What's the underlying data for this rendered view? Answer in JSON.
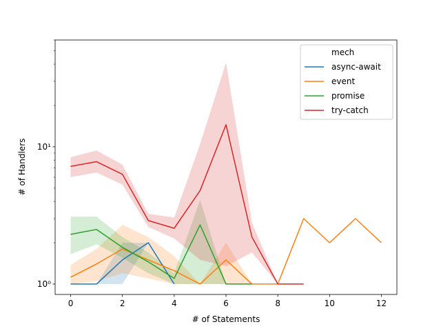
{
  "chart_data": {
    "type": "line",
    "xlabel": "# of Statements",
    "ylabel": "# of Handlers",
    "xlim": [
      -0.6,
      12.6
    ],
    "ylim": [
      0.84,
      60
    ],
    "yscale": "log",
    "x_ticks": [
      0,
      2,
      4,
      6,
      8,
      10,
      12
    ],
    "x_tick_labels": [
      "0",
      "2",
      "4",
      "6",
      "8",
      "10",
      "12"
    ],
    "y_ticks": [
      1,
      10
    ],
    "y_tick_labels": [
      "10⁰",
      "10¹"
    ],
    "grid": false,
    "legend": {
      "title": "mech",
      "placement": "top-right"
    },
    "series": [
      {
        "name": "async-await",
        "color": "#1f77b4",
        "x": [
          0,
          1,
          2,
          3,
          4
        ],
        "y": [
          1.0,
          1.0,
          1.5,
          2.0,
          1.0
        ],
        "ci_low": [
          1.0,
          1.0,
          1.0,
          2.0,
          1.0
        ],
        "ci_high": [
          1.0,
          1.0,
          2.0,
          2.0,
          1.0
        ]
      },
      {
        "name": "event",
        "color": "#ff7f0e",
        "x": [
          0,
          1,
          2,
          3,
          4,
          5,
          6,
          7,
          8,
          9,
          10,
          11,
          12
        ],
        "y": [
          1.12,
          1.4,
          1.8,
          1.5,
          1.25,
          1.0,
          1.5,
          1.0,
          1.0,
          3.0,
          2.0,
          3.0,
          2.0
        ],
        "ci_low": [
          1.0,
          1.05,
          1.2,
          1.1,
          1.0,
          1.0,
          1.0,
          1.0,
          1.0,
          3.0,
          2.0,
          3.0,
          2.0
        ],
        "ci_high": [
          1.38,
          1.8,
          2.7,
          2.2,
          1.6,
          1.0,
          2.0,
          1.0,
          1.0,
          3.0,
          2.0,
          3.0,
          2.0
        ]
      },
      {
        "name": "promise",
        "color": "#2ca02c",
        "x": [
          0,
          1,
          2,
          3,
          4,
          5,
          6,
          7
        ],
        "y": [
          2.3,
          2.5,
          1.85,
          1.45,
          1.1,
          2.7,
          1.0,
          1.0
        ],
        "ci_low": [
          1.65,
          1.95,
          1.55,
          1.2,
          1.0,
          1.0,
          1.0,
          1.0
        ],
        "ci_high": [
          3.1,
          3.1,
          2.2,
          1.7,
          1.2,
          4.1,
          1.0,
          1.0
        ]
      },
      {
        "name": "try-catch",
        "color": "#d62728",
        "x": [
          0,
          1,
          2,
          3,
          4,
          5,
          6,
          7,
          8,
          9
        ],
        "y": [
          7.2,
          7.8,
          6.3,
          2.9,
          2.55,
          4.8,
          14.5,
          2.2,
          1.0,
          1.0
        ],
        "ci_low": [
          6.0,
          6.5,
          5.3,
          2.6,
          2.15,
          1.5,
          1.35,
          1.7,
          1.0,
          1.0
        ],
        "ci_high": [
          8.4,
          9.4,
          7.4,
          3.25,
          3.05,
          10.5,
          41.0,
          2.8,
          1.0,
          1.0
        ]
      }
    ]
  }
}
